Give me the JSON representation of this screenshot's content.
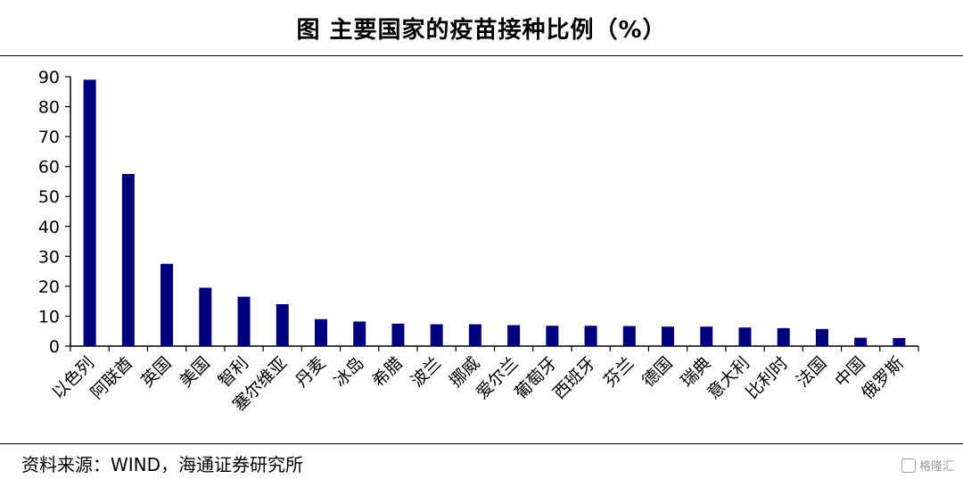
{
  "title": "图  主要国家的疫苗接种比例（%）",
  "source": "资料来源：WIND，海通证券研究所",
  "watermark": "格隆汇",
  "colors": {
    "bar": "#00007F",
    "axis": "#000000"
  },
  "chart_data": {
    "type": "bar",
    "title": "图  主要国家的疫苗接种比例（%）",
    "xlabel": "",
    "ylabel": "",
    "ylim": [
      0,
      90
    ],
    "yticks": [
      0,
      10,
      20,
      30,
      40,
      50,
      60,
      70,
      80,
      90
    ],
    "grid": false,
    "legend": "none",
    "categories": [
      "以色列",
      "阿联酋",
      "英国",
      "美国",
      "智利",
      "塞尔维亚",
      "丹麦",
      "冰岛",
      "希腊",
      "波兰",
      "挪威",
      "爱尔兰",
      "葡萄牙",
      "西班牙",
      "芬兰",
      "德国",
      "瑞典",
      "意大利",
      "比利时",
      "法国",
      "中国",
      "俄罗斯"
    ],
    "values": [
      89,
      57.5,
      27.5,
      19.5,
      16.5,
      14,
      9,
      8.2,
      7.5,
      7.3,
      7.3,
      7,
      6.8,
      6.8,
      6.7,
      6.5,
      6.5,
      6.2,
      6,
      5.7,
      2.8,
      2.7
    ]
  }
}
